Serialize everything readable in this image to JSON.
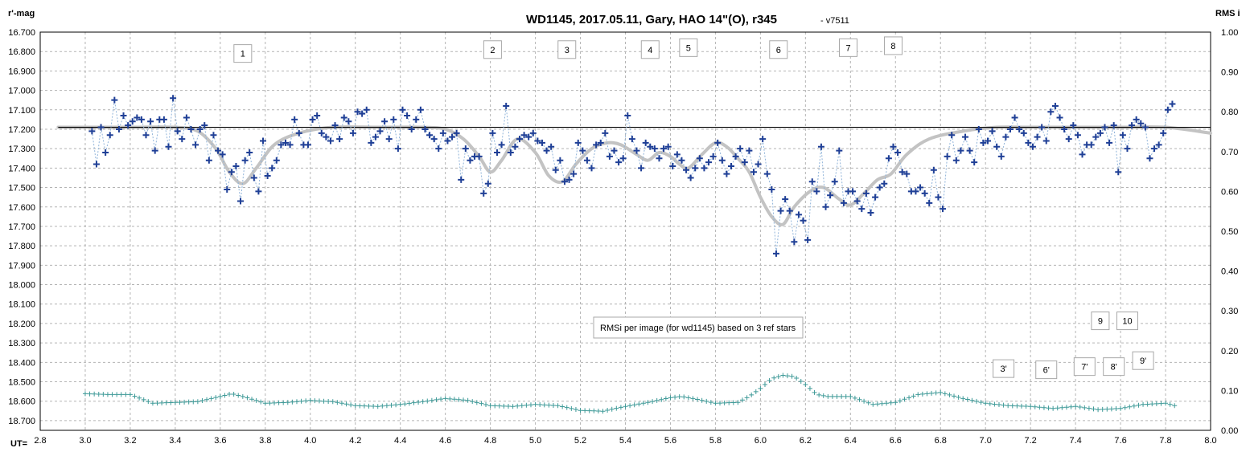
{
  "chart_data": {
    "type": "scatter",
    "title": "WD1145, 2017.05.11,  Gary, HAO 14\"(O), r345",
    "subtitle": "- v7511",
    "ylabel_left": "r'-mag",
    "ylabel_right": "RMS i",
    "xlabel": "UT=",
    "xlim": [
      2.8,
      8.0
    ],
    "x_ticks": [
      "2.8",
      "3.0",
      "3.2",
      "3.4",
      "3.6",
      "3.8",
      "4.0",
      "4.2",
      "4.4",
      "4.6",
      "4.8",
      "5.0",
      "5.2",
      "5.4",
      "5.6",
      "5.8",
      "6.0",
      "6.2",
      "6.4",
      "6.6",
      "6.8",
      "7.0",
      "7.2",
      "7.4",
      "7.6",
      "7.8",
      "8.0"
    ],
    "ylim_left": [
      16.7,
      18.75
    ],
    "y_ticks_left": [
      "16.700",
      "16.800",
      "16.900",
      "17.000",
      "17.100",
      "17.200",
      "17.300",
      "17.400",
      "17.500",
      "17.600",
      "17.700",
      "17.800",
      "17.900",
      "18.000",
      "18.100",
      "18.200",
      "18.300",
      "18.400",
      "18.500",
      "18.600",
      "18.700"
    ],
    "ylim_right": [
      0.0,
      1.0
    ],
    "y_ticks_right": [
      "0.00",
      "0.10",
      "0.20",
      "0.30",
      "0.40",
      "0.50",
      "0.60",
      "0.70",
      "0.80",
      "0.90",
      "1.00"
    ],
    "grid": true,
    "reference_line_mag": 17.19,
    "annotation_rms": "RMSi per image (for wd1145) based on 3 ref stars",
    "colors": {
      "points": "#1f3f96",
      "connector": "#8fb3d9",
      "model": "#c3c3c3",
      "reference": "#000000",
      "rms": "#3f9a98",
      "grid": "#b4b4b4"
    },
    "dip_labels": [
      {
        "text": "1",
        "x": 3.7,
        "mag": 16.81
      },
      {
        "text": "2",
        "x": 4.81,
        "mag": 16.79
      },
      {
        "text": "3",
        "x": 5.14,
        "mag": 16.79
      },
      {
        "text": "4",
        "x": 5.51,
        "mag": 16.79
      },
      {
        "text": "5",
        "x": 5.68,
        "mag": 16.78
      },
      {
        "text": "6",
        "x": 6.08,
        "mag": 16.79
      },
      {
        "text": "7",
        "x": 6.39,
        "mag": 16.78
      },
      {
        "text": "8",
        "x": 6.59,
        "mag": 16.77
      }
    ],
    "rms_labels": [
      {
        "text": "9",
        "x": 7.51,
        "rms": 0.275
      },
      {
        "text": "10",
        "x": 7.63,
        "rms": 0.275
      },
      {
        "text": "3'",
        "x": 7.08,
        "rms": 0.155
      },
      {
        "text": "6'",
        "x": 7.27,
        "rms": 0.152
      },
      {
        "text": "7'",
        "x": 7.44,
        "rms": 0.16
      },
      {
        "text": "8'",
        "x": 7.57,
        "rms": 0.16
      },
      {
        "text": "9'",
        "x": 7.7,
        "rms": 0.175
      }
    ],
    "model_curve": {
      "name": "",
      "x": [
        2.88,
        3.0,
        3.2,
        3.4,
        3.5,
        3.58,
        3.64,
        3.7,
        3.76,
        3.84,
        3.95,
        4.1,
        4.3,
        4.5,
        4.6,
        4.68,
        4.75,
        4.8,
        4.85,
        4.92,
        5.0,
        5.06,
        5.12,
        5.18,
        5.25,
        5.32,
        5.38,
        5.45,
        5.5,
        5.55,
        5.6,
        5.64,
        5.68,
        5.74,
        5.8,
        5.85,
        5.9,
        5.95,
        6.0,
        6.05,
        6.1,
        6.15,
        6.22,
        6.28,
        6.35,
        6.4,
        6.46,
        6.52,
        6.58,
        6.65,
        6.75,
        6.9,
        7.05,
        7.2,
        7.4,
        7.6,
        7.8,
        8.0
      ],
      "mag": [
        17.19,
        17.19,
        17.19,
        17.19,
        17.21,
        17.3,
        17.42,
        17.48,
        17.4,
        17.28,
        17.22,
        17.19,
        17.19,
        17.19,
        17.2,
        17.25,
        17.34,
        17.42,
        17.36,
        17.25,
        17.32,
        17.44,
        17.47,
        17.38,
        17.3,
        17.27,
        17.28,
        17.33,
        17.36,
        17.32,
        17.34,
        17.38,
        17.4,
        17.33,
        17.27,
        17.29,
        17.35,
        17.42,
        17.55,
        17.65,
        17.69,
        17.6,
        17.52,
        17.5,
        17.56,
        17.59,
        17.53,
        17.46,
        17.43,
        17.33,
        17.25,
        17.21,
        17.19,
        17.19,
        17.19,
        17.19,
        17.19,
        17.22
      ]
    },
    "series": [
      {
        "name": "",
        "x": [
          3.03,
          3.05,
          3.07,
          3.09,
          3.11,
          3.13,
          3.15,
          3.17,
          3.19,
          3.21,
          3.23,
          3.25,
          3.27,
          3.29,
          3.31,
          3.33,
          3.35,
          3.37,
          3.39,
          3.41,
          3.43,
          3.45,
          3.47,
          3.49,
          3.51,
          3.53,
          3.55,
          3.57,
          3.59,
          3.61,
          3.63,
          3.65,
          3.67,
          3.69,
          3.71,
          3.73,
          3.75,
          3.77,
          3.79,
          3.81,
          3.83,
          3.85,
          3.87,
          3.89,
          3.91,
          3.93,
          3.95,
          3.97,
          3.99,
          4.01,
          4.03,
          4.05,
          4.07,
          4.09,
          4.11,
          4.13,
          4.15,
          4.17,
          4.19,
          4.21,
          4.23,
          4.25,
          4.27,
          4.29,
          4.31,
          4.33,
          4.35,
          4.37,
          4.39,
          4.41,
          4.43,
          4.45,
          4.47,
          4.49,
          4.51,
          4.53,
          4.55,
          4.57,
          4.59,
          4.61,
          4.63,
          4.65,
          4.67,
          4.69,
          4.71,
          4.73,
          4.75,
          4.77,
          4.79,
          4.81,
          4.83,
          4.85,
          4.87,
          4.89,
          4.91,
          4.93,
          4.95,
          4.97,
          4.99,
          5.01,
          5.03,
          5.05,
          5.07,
          5.09,
          5.11,
          5.13,
          5.15,
          5.17,
          5.19,
          5.21,
          5.23,
          5.25,
          5.27,
          5.29,
          5.31,
          5.33,
          5.35,
          5.37,
          5.39,
          5.41,
          5.43,
          5.45,
          5.47,
          5.49,
          5.51,
          5.53,
          5.55,
          5.57,
          5.59,
          5.61,
          5.63,
          5.65,
          5.67,
          5.69,
          5.71,
          5.73,
          5.75,
          5.77,
          5.79,
          5.81,
          5.83,
          5.85,
          5.87,
          5.89,
          5.91,
          5.93,
          5.95,
          5.97,
          5.99,
          6.01,
          6.03,
          6.05,
          6.07,
          6.09,
          6.11,
          6.13,
          6.15,
          6.17,
          6.19,
          6.21,
          6.23,
          6.25,
          6.27,
          6.29,
          6.31,
          6.33,
          6.35,
          6.37,
          6.39,
          6.41,
          6.43,
          6.45,
          6.47,
          6.49,
          6.51,
          6.53,
          6.55,
          6.57,
          6.59,
          6.61,
          6.63,
          6.65,
          6.67,
          6.69,
          6.71,
          6.73,
          6.75,
          6.77,
          6.79,
          6.81,
          6.83,
          6.85,
          6.87,
          6.89,
          6.91,
          6.93,
          6.95,
          6.97,
          6.99,
          7.01,
          7.03,
          7.05,
          7.07,
          7.09,
          7.11,
          7.13,
          7.15,
          7.17,
          7.19,
          7.21,
          7.23,
          7.25,
          7.27,
          7.29,
          7.31,
          7.33,
          7.35,
          7.37,
          7.39,
          7.41,
          7.43,
          7.45,
          7.47,
          7.49,
          7.51,
          7.53,
          7.55,
          7.57,
          7.59,
          7.61,
          7.63,
          7.65,
          7.67,
          7.69,
          7.71,
          7.73,
          7.75,
          7.77,
          7.79,
          7.81,
          7.83
        ],
        "mag": [
          17.21,
          17.38,
          17.19,
          17.32,
          17.23,
          17.05,
          17.2,
          17.13,
          17.18,
          17.16,
          17.14,
          17.15,
          17.23,
          17.16,
          17.31,
          17.15,
          17.15,
          17.29,
          17.04,
          17.21,
          17.25,
          17.14,
          17.2,
          17.28,
          17.2,
          17.18,
          17.36,
          17.23,
          17.31,
          17.33,
          17.51,
          17.42,
          17.39,
          17.57,
          17.36,
          17.32,
          17.45,
          17.52,
          17.26,
          17.44,
          17.4,
          17.36,
          17.28,
          17.27,
          17.28,
          17.15,
          17.22,
          17.28,
          17.28,
          17.15,
          17.13,
          17.22,
          17.24,
          17.26,
          17.18,
          17.25,
          17.14,
          17.16,
          17.22,
          17.11,
          17.12,
          17.1,
          17.27,
          17.24,
          17.21,
          17.16,
          17.25,
          17.15,
          17.3,
          17.1,
          17.13,
          17.2,
          17.15,
          17.1,
          17.2,
          17.23,
          17.25,
          17.3,
          17.22,
          17.26,
          17.24,
          17.22,
          17.46,
          17.3,
          17.36,
          17.34,
          17.34,
          17.53,
          17.48,
          17.22,
          17.32,
          17.28,
          17.08,
          17.32,
          17.29,
          17.25,
          17.23,
          17.24,
          17.22,
          17.26,
          17.27,
          17.31,
          17.29,
          17.41,
          17.36,
          17.47,
          17.46,
          17.43,
          17.27,
          17.31,
          17.36,
          17.4,
          17.28,
          17.27,
          17.22,
          17.34,
          17.31,
          17.37,
          17.35,
          17.13,
          17.25,
          17.31,
          17.4,
          17.27,
          17.29,
          17.3,
          17.35,
          17.3,
          17.29,
          17.39,
          17.33,
          17.36,
          17.41,
          17.45,
          17.4,
          17.35,
          17.4,
          17.37,
          17.34,
          17.27,
          17.36,
          17.43,
          17.39,
          17.34,
          17.3,
          17.37,
          17.31,
          17.42,
          17.38,
          17.25,
          17.43,
          17.51,
          17.84,
          17.62,
          17.56,
          17.62,
          17.78,
          17.64,
          17.67,
          17.77,
          17.47,
          17.52,
          17.29,
          17.6,
          17.54,
          17.47,
          17.31,
          17.58,
          17.52,
          17.52,
          17.57,
          17.61,
          17.53,
          17.63,
          17.55,
          17.5,
          17.48,
          17.35,
          17.29,
          17.32,
          17.42,
          17.43,
          17.52,
          17.52,
          17.5,
          17.53,
          17.58,
          17.41,
          17.55,
          17.61,
          17.34,
          17.23,
          17.36,
          17.31,
          17.24,
          17.31,
          17.37,
          17.2,
          17.27,
          17.26,
          17.21,
          17.29,
          17.34,
          17.24,
          17.2,
          17.14,
          17.2,
          17.22,
          17.27,
          17.29,
          17.24,
          17.19,
          17.26,
          17.11,
          17.08,
          17.14,
          17.2,
          17.25,
          17.18,
          17.23,
          17.33,
          17.28,
          17.28,
          17.24,
          17.22,
          17.19,
          17.27,
          17.18,
          17.42,
          17.23,
          17.3,
          17.18,
          17.15,
          17.17,
          17.19,
          17.35,
          17.3,
          17.28,
          17.22,
          17.1,
          17.07,
          17.13,
          17.19,
          17.23,
          17.17,
          17.17,
          17.21,
          17.17,
          17.33,
          17.3,
          17.23,
          17.09,
          17.05,
          17.2,
          17.26
        ]
      },
      {
        "name": "",
        "axis": "right",
        "x": [
          3.0,
          3.1,
          3.2,
          3.3,
          3.4,
          3.5,
          3.6,
          3.65,
          3.7,
          3.8,
          3.9,
          4.0,
          4.1,
          4.2,
          4.3,
          4.4,
          4.5,
          4.6,
          4.7,
          4.8,
          4.9,
          5.0,
          5.1,
          5.2,
          5.3,
          5.4,
          5.5,
          5.6,
          5.65,
          5.7,
          5.8,
          5.9,
          5.95,
          6.0,
          6.05,
          6.1,
          6.15,
          6.2,
          6.25,
          6.3,
          6.4,
          6.5,
          6.6,
          6.7,
          6.8,
          6.9,
          7.0,
          7.1,
          7.2,
          7.3,
          7.4,
          7.5,
          7.6,
          7.7,
          7.8,
          7.84
        ],
        "rms": [
          0.092,
          0.09,
          0.09,
          0.068,
          0.07,
          0.072,
          0.085,
          0.092,
          0.085,
          0.068,
          0.07,
          0.075,
          0.072,
          0.062,
          0.06,
          0.065,
          0.072,
          0.08,
          0.075,
          0.062,
          0.06,
          0.065,
          0.062,
          0.05,
          0.048,
          0.06,
          0.07,
          0.082,
          0.085,
          0.08,
          0.068,
          0.07,
          0.085,
          0.105,
          0.13,
          0.138,
          0.135,
          0.115,
          0.09,
          0.085,
          0.085,
          0.065,
          0.07,
          0.09,
          0.095,
          0.08,
          0.068,
          0.062,
          0.06,
          0.055,
          0.06,
          0.052,
          0.055,
          0.065,
          0.068,
          0.062
        ]
      }
    ]
  }
}
